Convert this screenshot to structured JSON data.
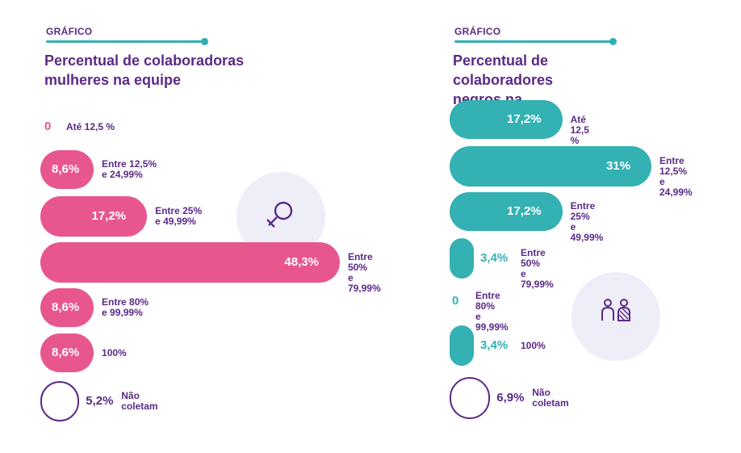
{
  "colors": {
    "accent": "#2fb0b0",
    "text": "#5b2a86",
    "pink": "#e8568f",
    "teal": "#33b1b3",
    "iconBg": "#eeeef8"
  },
  "chart_data": [
    {
      "type": "bar",
      "kicker": "GRÁFICO",
      "title": "Percentual de colaboradoras mulheres na equipe",
      "title_lines": [
        "Percentual de colaboradoras",
        "mulheres na equipe"
      ],
      "icon": "female-symbol-icon",
      "color": "#e8568f",
      "categories": [
        "Até 12,5 %",
        "Entre 12,5%\ne 24,99%",
        "Entre 25%\ne 49,99%",
        "Entre 50%\ne 79,99%",
        "Entre 80%\ne 99,99%",
        "100%",
        "Não\ncoletam"
      ],
      "values": [
        0,
        8.6,
        17.2,
        48.3,
        8.6,
        8.6,
        5.2
      ],
      "labels": [
        "0",
        "8,6%",
        "17,2%",
        "48,3%",
        "8,6%",
        "8,6%",
        "5,2%"
      ],
      "unit": "%"
    },
    {
      "type": "bar",
      "kicker": "GRÁFICO",
      "title": "Percentual de colaboradores negros na equipe",
      "title_lines": [
        "Percentual de colaboradores",
        "negros na equipe"
      ],
      "icon": "people-icon",
      "color": "#33b1b3",
      "categories": [
        "Até 12,5 %",
        "Entre 12,5%\ne 24,99%",
        "Entre 25%\ne 49,99%",
        "Entre 50%\ne 79,99%",
        "Entre 80%\ne 99,99%",
        "100%",
        "Não\ncoletam"
      ],
      "values": [
        17.2,
        31,
        17.2,
        3.4,
        0,
        3.4,
        6.9
      ],
      "labels": [
        "17,2%",
        "31%",
        "17,2%",
        "3,4%",
        "0",
        "3,4%",
        "6,9%"
      ],
      "unit": "%"
    }
  ]
}
